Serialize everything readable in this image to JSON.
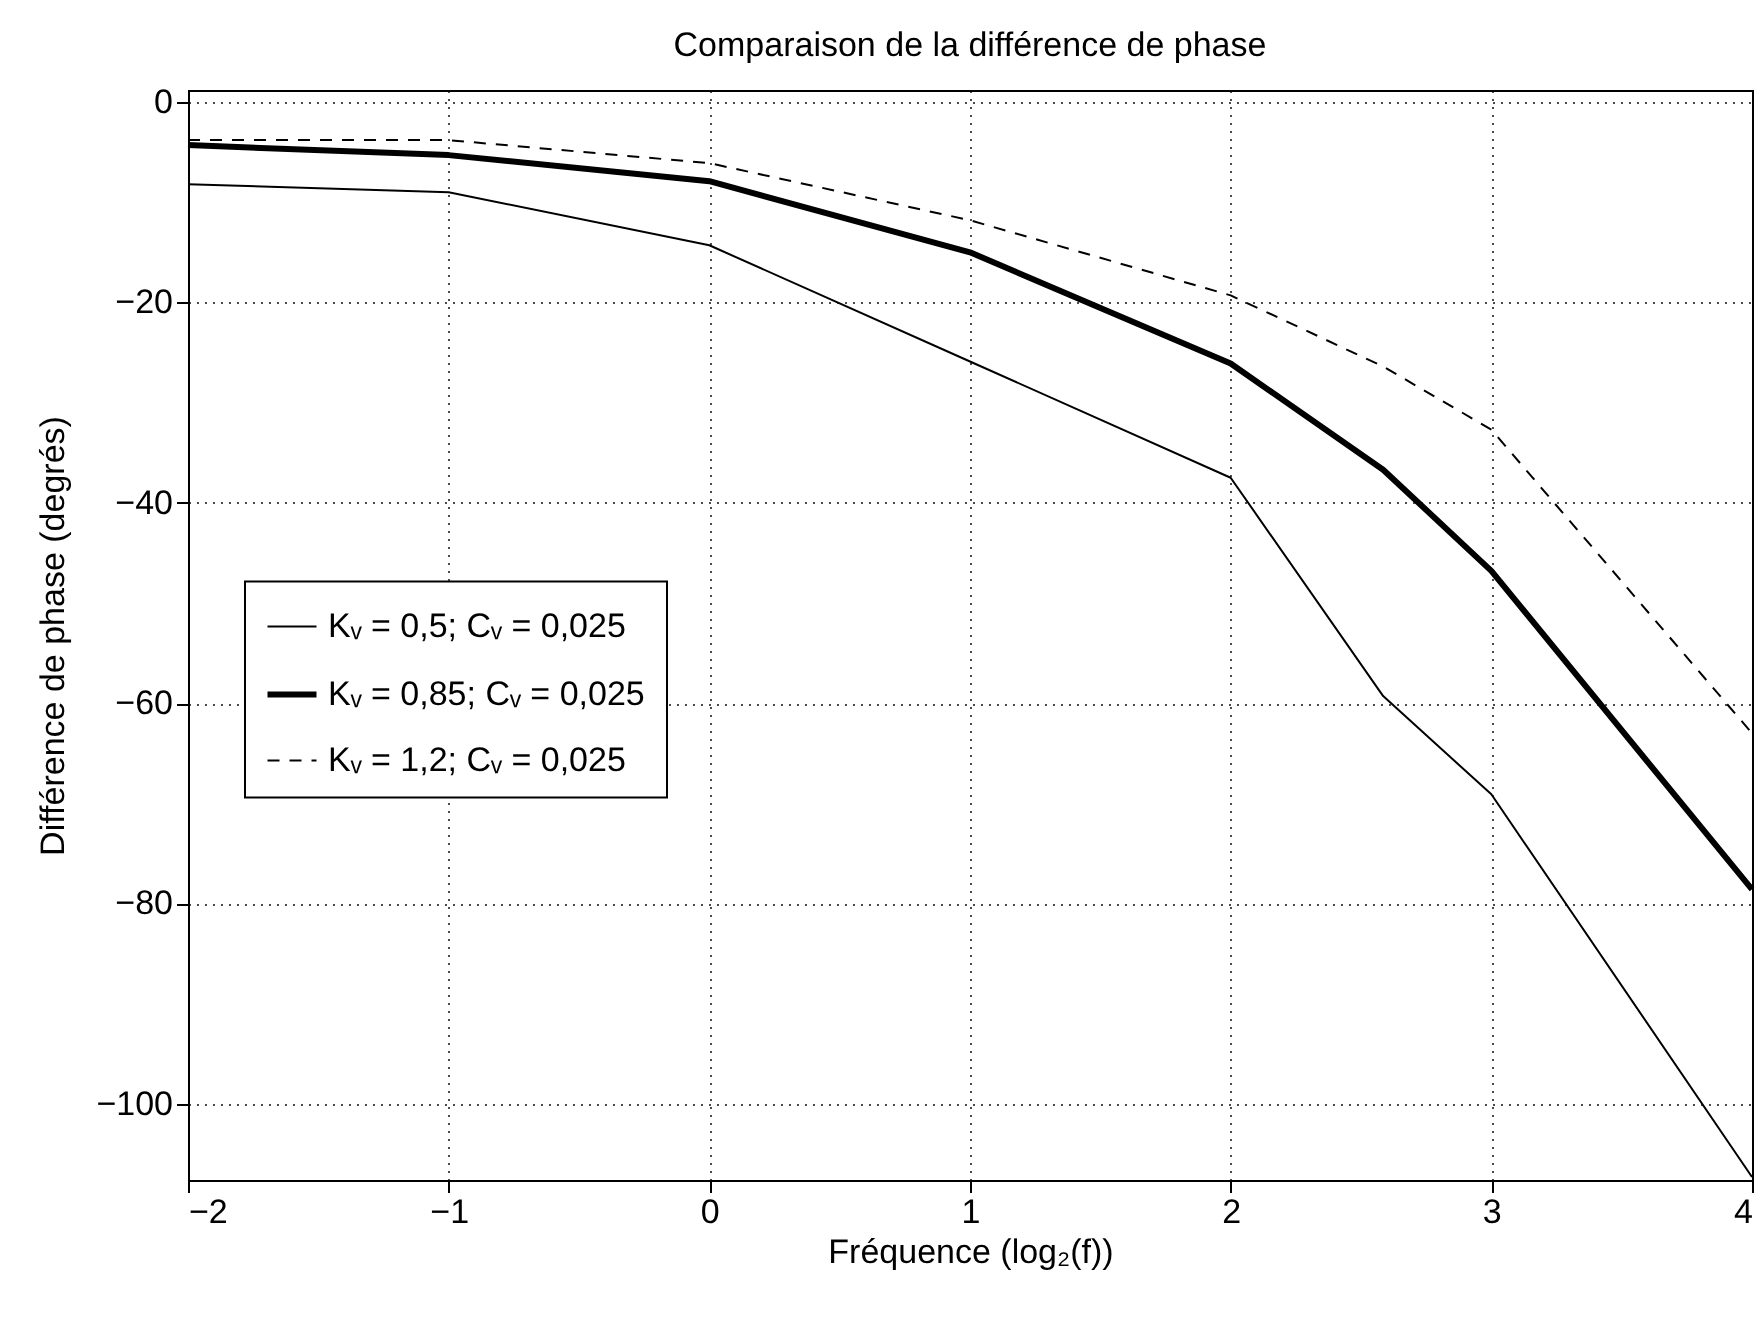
{
  "chart_data": {
    "type": "line",
    "title": "Comparaison de la différence de phase",
    "xlabel": "Fréquence (log₂(f))",
    "ylabel": "Différence de phase (degrés)",
    "x": [
      -2,
      -1,
      0,
      1,
      2,
      2.585,
      3,
      4
    ],
    "series": [
      {
        "name": "Kᵥ = 0,5; Cᵥ = 0,025",
        "color": "#000000",
        "line_style": "solid",
        "values": [
          -8.2,
          -9.0,
          -14.3,
          -25.9,
          -37.5,
          -59.3,
          -69.1,
          -107.3
        ]
      },
      {
        "name": "Kᵥ = 0,85; Cᵥ = 0,025",
        "color": "#000000",
        "line_style": "solid",
        "values": [
          -4.3,
          -5.3,
          -7.9,
          -15.0,
          -26.1,
          -36.7,
          -46.8,
          -78.6
        ]
      },
      {
        "name": "Kᵥ = 1,2; Cᵥ = 0,025",
        "color": "#000000",
        "line_style": "dashed",
        "values": [
          -3.8,
          -3.8,
          -6.1,
          -11.8,
          -19.3,
          -26.4,
          -32.7,
          -63.0
        ]
      }
    ],
    "xlim": [
      -2,
      4
    ],
    "xticks": [
      -2,
      -1,
      0,
      1,
      2,
      3,
      4
    ],
    "ylim": [
      -107.6,
      1.2
    ],
    "yticks": [
      -100,
      -80,
      -60,
      -40,
      -20,
      0
    ],
    "grid": true,
    "legend": "left",
    "marker": "none"
  }
}
